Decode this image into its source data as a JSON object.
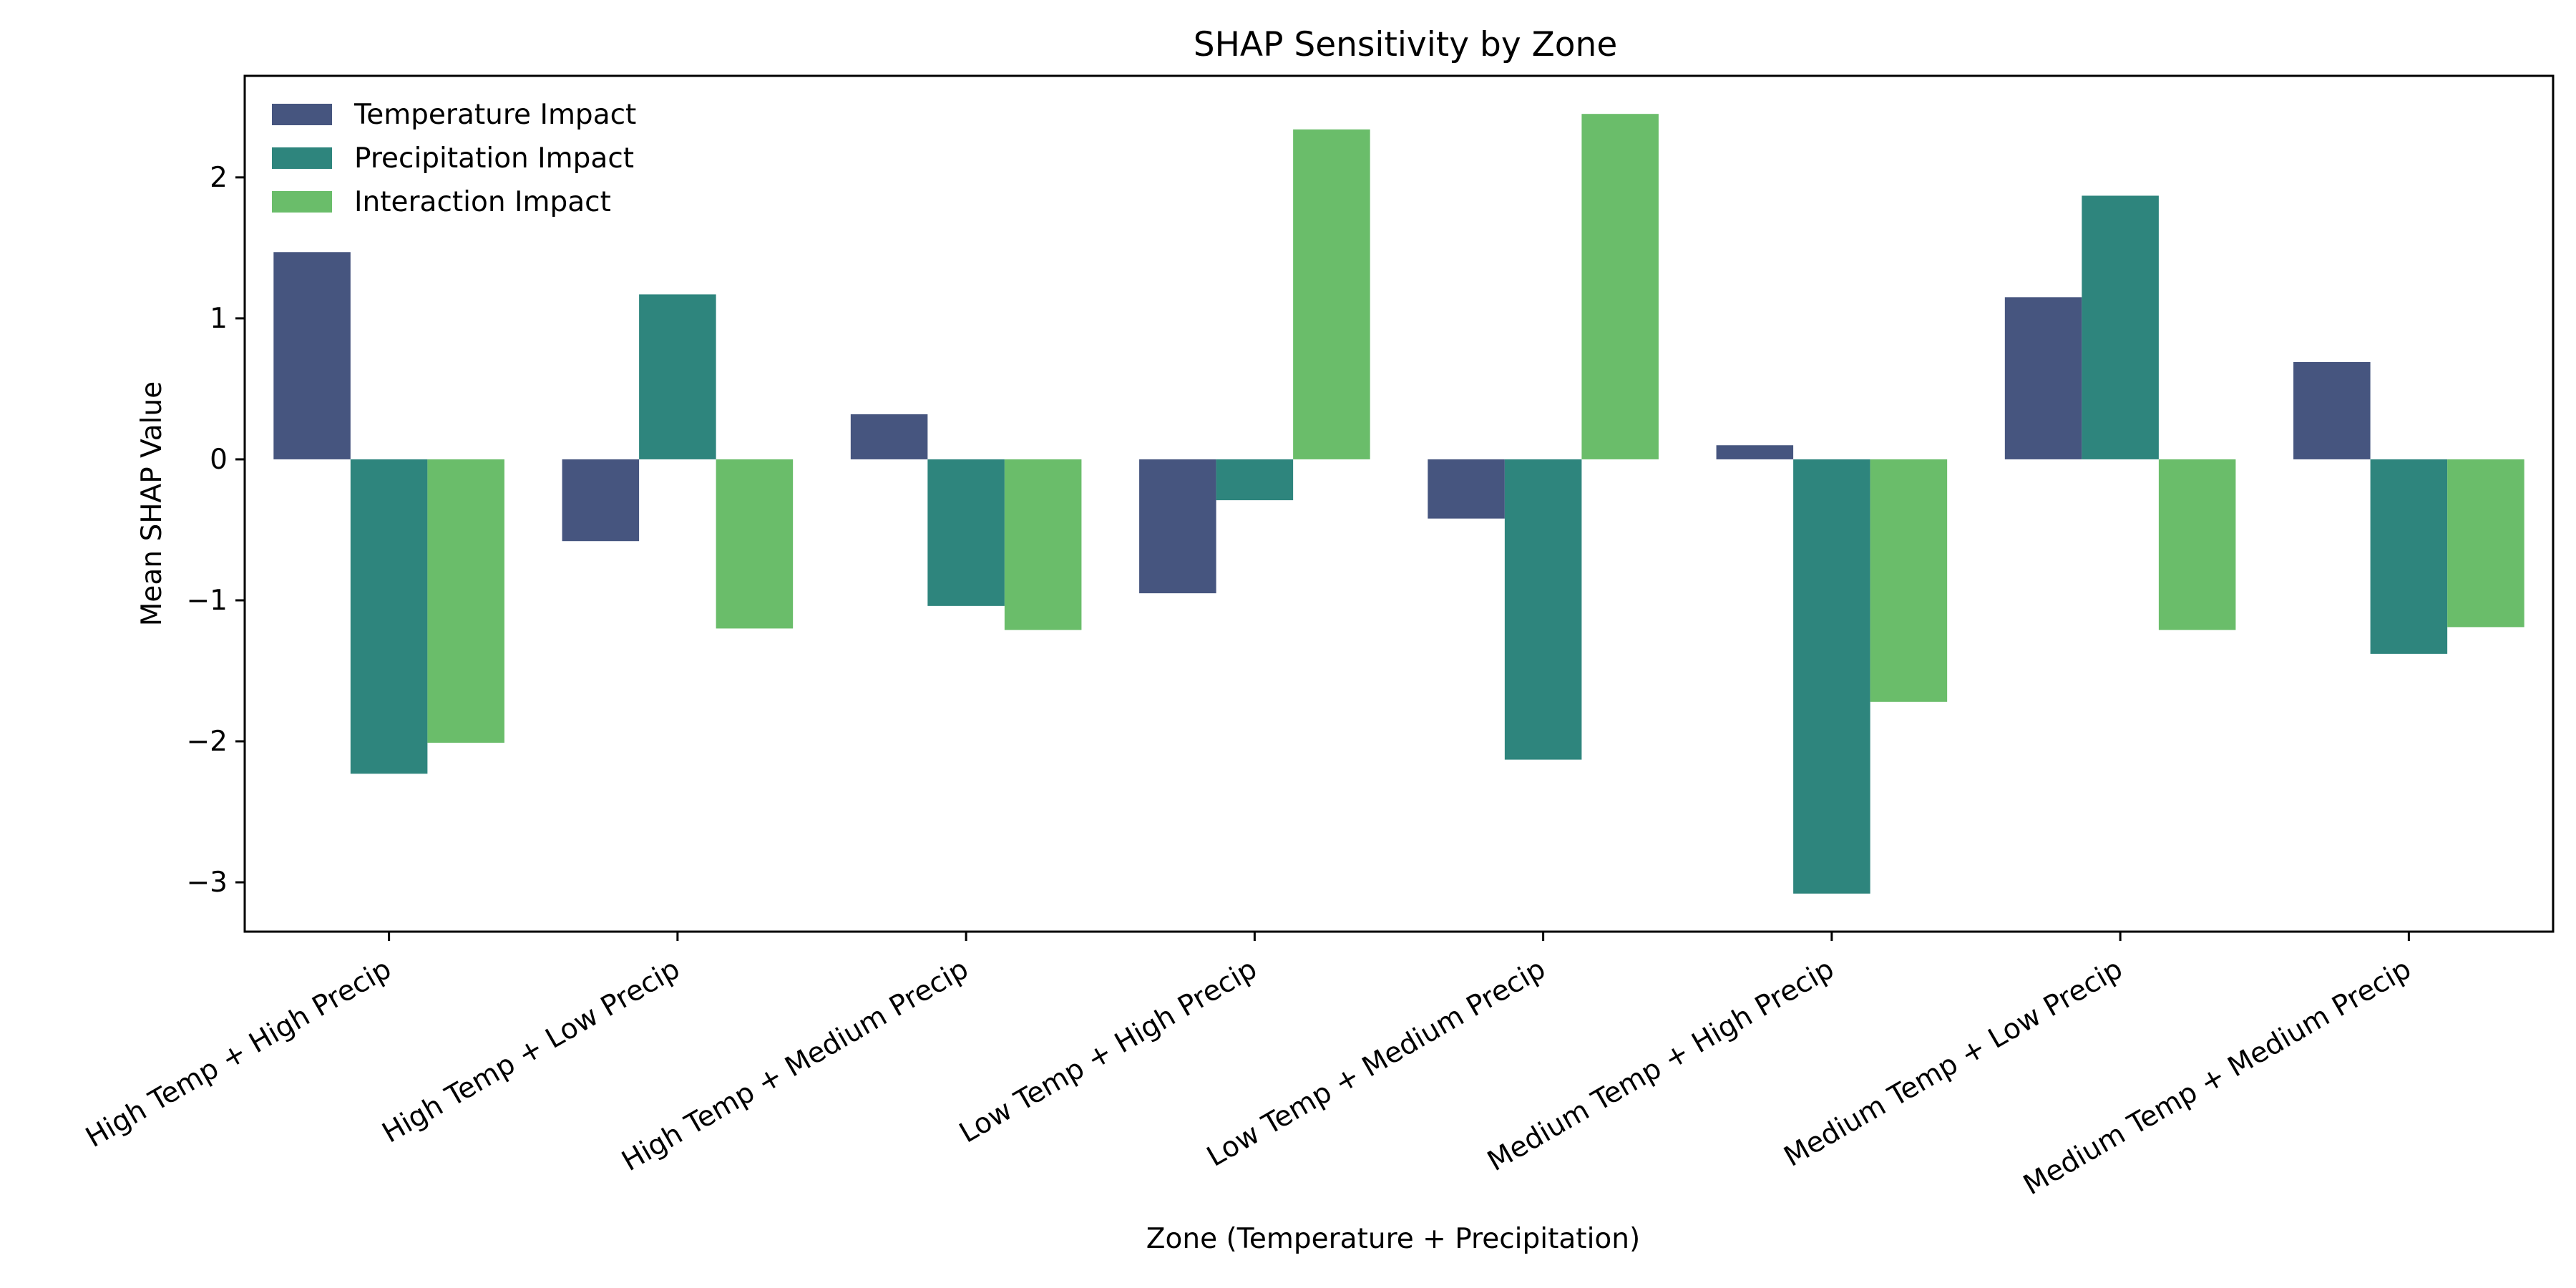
{
  "chart_data": {
    "type": "bar",
    "title": "SHAP Sensitivity by Zone",
    "xlabel": "Zone (Temperature + Precipitation)",
    "ylabel": "Mean SHAP Value",
    "categories": [
      "High Temp + High Precip",
      "High Temp + Low Precip",
      "High Temp + Medium Precip",
      "Low Temp + High Precip",
      "Low Temp + Medium Precip",
      "Medium Temp + High Precip",
      "Medium Temp + Low Precip",
      "Medium Temp + Medium Precip"
    ],
    "series": [
      {
        "name": "Temperature Impact",
        "color": "#46557f",
        "values": [
          1.47,
          -0.58,
          0.32,
          -0.95,
          -0.42,
          0.1,
          1.15,
          0.69
        ]
      },
      {
        "name": "Precipitation Impact",
        "color": "#2e857d",
        "values": [
          -2.23,
          1.17,
          -1.04,
          -0.29,
          -2.13,
          -3.08,
          1.87,
          -1.38
        ]
      },
      {
        "name": "Interaction Impact",
        "color": "#6abd6a",
        "values": [
          -2.01,
          -1.2,
          -1.21,
          2.34,
          2.45,
          -1.72,
          -1.21,
          -1.19
        ]
      }
    ],
    "yticks": [
      -3,
      -2,
      -1,
      0,
      1,
      2
    ],
    "ylim": [
      -3.35,
      2.72
    ],
    "grid": false,
    "legend_position": "top-left"
  }
}
